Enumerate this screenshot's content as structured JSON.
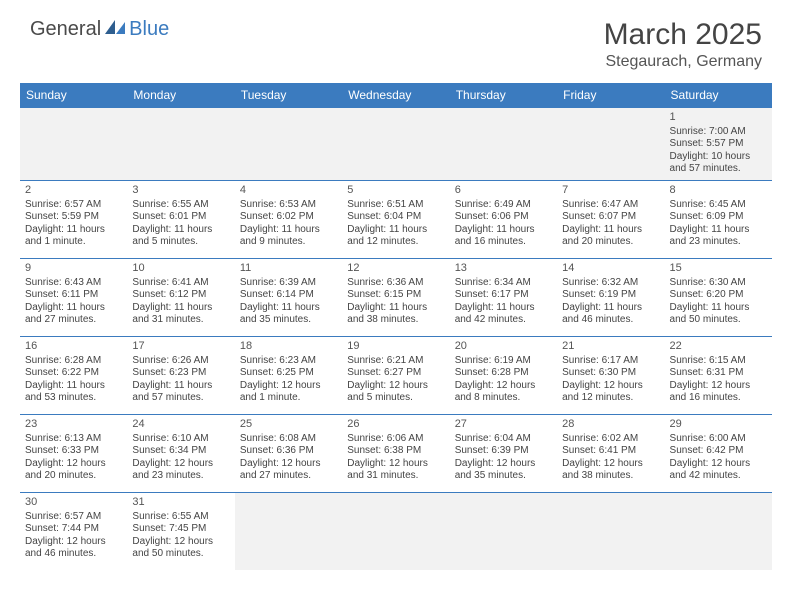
{
  "logo": {
    "general": "General",
    "blue": "Blue"
  },
  "title": "March 2025",
  "location": "Stegaurach, Germany",
  "colors": {
    "header_bg": "#3b7bbf",
    "text": "#444444",
    "empty_bg": "#f2f2f2"
  },
  "dayHeaders": [
    "Sunday",
    "Monday",
    "Tuesday",
    "Wednesday",
    "Thursday",
    "Friday",
    "Saturday"
  ],
  "weeks": [
    [
      null,
      null,
      null,
      null,
      null,
      null,
      {
        "d": "1",
        "r": "Sunrise: 7:00 AM",
        "s": "Sunset: 5:57 PM",
        "l": "Daylight: 10 hours and 57 minutes."
      }
    ],
    [
      {
        "d": "2",
        "r": "Sunrise: 6:57 AM",
        "s": "Sunset: 5:59 PM",
        "l": "Daylight: 11 hours and 1 minute."
      },
      {
        "d": "3",
        "r": "Sunrise: 6:55 AM",
        "s": "Sunset: 6:01 PM",
        "l": "Daylight: 11 hours and 5 minutes."
      },
      {
        "d": "4",
        "r": "Sunrise: 6:53 AM",
        "s": "Sunset: 6:02 PM",
        "l": "Daylight: 11 hours and 9 minutes."
      },
      {
        "d": "5",
        "r": "Sunrise: 6:51 AM",
        "s": "Sunset: 6:04 PM",
        "l": "Daylight: 11 hours and 12 minutes."
      },
      {
        "d": "6",
        "r": "Sunrise: 6:49 AM",
        "s": "Sunset: 6:06 PM",
        "l": "Daylight: 11 hours and 16 minutes."
      },
      {
        "d": "7",
        "r": "Sunrise: 6:47 AM",
        "s": "Sunset: 6:07 PM",
        "l": "Daylight: 11 hours and 20 minutes."
      },
      {
        "d": "8",
        "r": "Sunrise: 6:45 AM",
        "s": "Sunset: 6:09 PM",
        "l": "Daylight: 11 hours and 23 minutes."
      }
    ],
    [
      {
        "d": "9",
        "r": "Sunrise: 6:43 AM",
        "s": "Sunset: 6:11 PM",
        "l": "Daylight: 11 hours and 27 minutes."
      },
      {
        "d": "10",
        "r": "Sunrise: 6:41 AM",
        "s": "Sunset: 6:12 PM",
        "l": "Daylight: 11 hours and 31 minutes."
      },
      {
        "d": "11",
        "r": "Sunrise: 6:39 AM",
        "s": "Sunset: 6:14 PM",
        "l": "Daylight: 11 hours and 35 minutes."
      },
      {
        "d": "12",
        "r": "Sunrise: 6:36 AM",
        "s": "Sunset: 6:15 PM",
        "l": "Daylight: 11 hours and 38 minutes."
      },
      {
        "d": "13",
        "r": "Sunrise: 6:34 AM",
        "s": "Sunset: 6:17 PM",
        "l": "Daylight: 11 hours and 42 minutes."
      },
      {
        "d": "14",
        "r": "Sunrise: 6:32 AM",
        "s": "Sunset: 6:19 PM",
        "l": "Daylight: 11 hours and 46 minutes."
      },
      {
        "d": "15",
        "r": "Sunrise: 6:30 AM",
        "s": "Sunset: 6:20 PM",
        "l": "Daylight: 11 hours and 50 minutes."
      }
    ],
    [
      {
        "d": "16",
        "r": "Sunrise: 6:28 AM",
        "s": "Sunset: 6:22 PM",
        "l": "Daylight: 11 hours and 53 minutes."
      },
      {
        "d": "17",
        "r": "Sunrise: 6:26 AM",
        "s": "Sunset: 6:23 PM",
        "l": "Daylight: 11 hours and 57 minutes."
      },
      {
        "d": "18",
        "r": "Sunrise: 6:23 AM",
        "s": "Sunset: 6:25 PM",
        "l": "Daylight: 12 hours and 1 minute."
      },
      {
        "d": "19",
        "r": "Sunrise: 6:21 AM",
        "s": "Sunset: 6:27 PM",
        "l": "Daylight: 12 hours and 5 minutes."
      },
      {
        "d": "20",
        "r": "Sunrise: 6:19 AM",
        "s": "Sunset: 6:28 PM",
        "l": "Daylight: 12 hours and 8 minutes."
      },
      {
        "d": "21",
        "r": "Sunrise: 6:17 AM",
        "s": "Sunset: 6:30 PM",
        "l": "Daylight: 12 hours and 12 minutes."
      },
      {
        "d": "22",
        "r": "Sunrise: 6:15 AM",
        "s": "Sunset: 6:31 PM",
        "l": "Daylight: 12 hours and 16 minutes."
      }
    ],
    [
      {
        "d": "23",
        "r": "Sunrise: 6:13 AM",
        "s": "Sunset: 6:33 PM",
        "l": "Daylight: 12 hours and 20 minutes."
      },
      {
        "d": "24",
        "r": "Sunrise: 6:10 AM",
        "s": "Sunset: 6:34 PM",
        "l": "Daylight: 12 hours and 23 minutes."
      },
      {
        "d": "25",
        "r": "Sunrise: 6:08 AM",
        "s": "Sunset: 6:36 PM",
        "l": "Daylight: 12 hours and 27 minutes."
      },
      {
        "d": "26",
        "r": "Sunrise: 6:06 AM",
        "s": "Sunset: 6:38 PM",
        "l": "Daylight: 12 hours and 31 minutes."
      },
      {
        "d": "27",
        "r": "Sunrise: 6:04 AM",
        "s": "Sunset: 6:39 PM",
        "l": "Daylight: 12 hours and 35 minutes."
      },
      {
        "d": "28",
        "r": "Sunrise: 6:02 AM",
        "s": "Sunset: 6:41 PM",
        "l": "Daylight: 12 hours and 38 minutes."
      },
      {
        "d": "29",
        "r": "Sunrise: 6:00 AM",
        "s": "Sunset: 6:42 PM",
        "l": "Daylight: 12 hours and 42 minutes."
      }
    ],
    [
      {
        "d": "30",
        "r": "Sunrise: 6:57 AM",
        "s": "Sunset: 7:44 PM",
        "l": "Daylight: 12 hours and 46 minutes."
      },
      {
        "d": "31",
        "r": "Sunrise: 6:55 AM",
        "s": "Sunset: 7:45 PM",
        "l": "Daylight: 12 hours and 50 minutes."
      },
      null,
      null,
      null,
      null,
      null
    ]
  ]
}
